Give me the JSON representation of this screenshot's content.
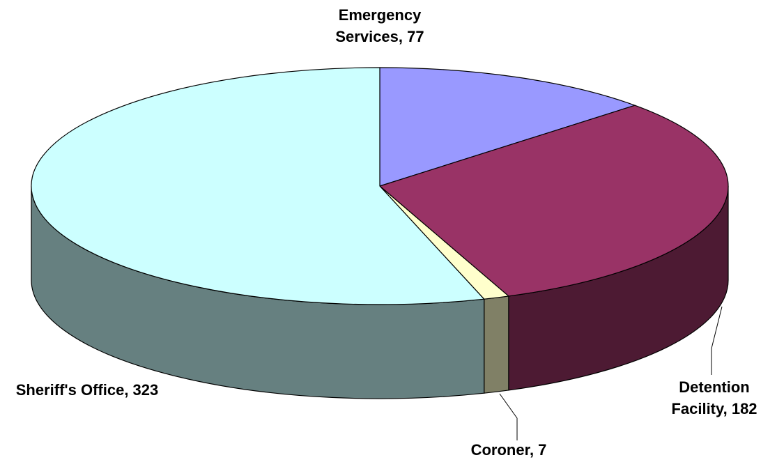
{
  "chart_data": {
    "type": "pie3d",
    "values": [
      77,
      182,
      7,
      323
    ],
    "value_labels": [
      "Emergency Services, 77",
      "Detention Facility, 182",
      "Coroner, 7",
      "Sheriff's Office, 323"
    ],
    "colors": [
      "#9999ff",
      "#993366",
      "#ffffcc",
      "#ccffff"
    ]
  }
}
